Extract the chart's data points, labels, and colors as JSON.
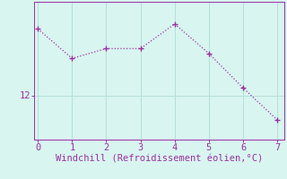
{
  "x": [
    0,
    1,
    2,
    3,
    4,
    5,
    6,
    7
  ],
  "y": [
    14.7,
    13.5,
    13.9,
    13.9,
    14.9,
    13.7,
    12.3,
    11.0
  ],
  "line_color": "#9B30A0",
  "marker_color": "#9B30A0",
  "background_color": "#D8F5F0",
  "grid_color": "#B5DEDA",
  "xlabel": "Windchill (Refroidissement éolien,°C)",
  "xlabel_color": "#9B30A0",
  "tick_color": "#9B30A0",
  "spine_color": "#9B30A0",
  "ytick_labels": [
    "12"
  ],
  "ytick_values": [
    12
  ],
  "xlim": [
    -0.1,
    7.2
  ],
  "ylim": [
    10.2,
    15.8
  ],
  "label_fontsize": 7.5,
  "tick_fontsize": 7.5
}
